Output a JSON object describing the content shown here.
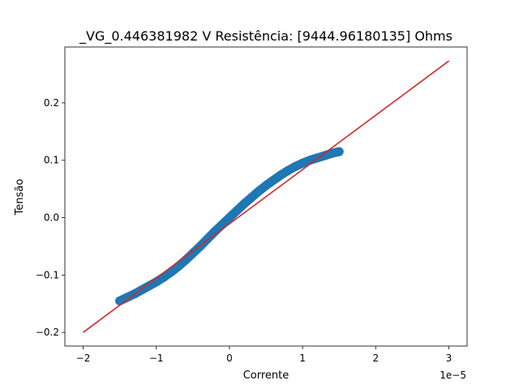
{
  "chart_data": {
    "type": "scatter",
    "title": "_VG_0.446381982 V  Resistência: [9444.96180135] Ohms",
    "xlabel": "Corrente",
    "ylabel": "Tensão",
    "x_scale_label": "1e−5",
    "x_unit_multiplier": 1e-05,
    "xlim": [
      -2.25,
      3.25
    ],
    "ylim": [
      -0.2237,
      0.2973
    ],
    "x_ticks": [
      -2,
      -1,
      0,
      1,
      2,
      3
    ],
    "x_tick_labels": [
      "−2",
      "−1",
      "0",
      "1",
      "2",
      "3"
    ],
    "y_ticks": [
      -0.2,
      -0.1,
      0.0,
      0.1,
      0.2
    ],
    "y_tick_labels": [
      "−0.2",
      "−0.1",
      "0.0",
      "0.1",
      "0.2"
    ],
    "grid": false,
    "series": [
      {
        "kind": "scatter",
        "color": "#1f77b4",
        "x": [
          -1.5,
          -1.4,
          -1.3,
          -1.2,
          -1.1,
          -1.0,
          -0.9,
          -0.8,
          -0.7,
          -0.6,
          -0.5,
          -0.4,
          -0.3,
          -0.2,
          -0.1,
          0.0,
          0.1,
          0.2,
          0.3,
          0.4,
          0.5,
          0.6,
          0.7,
          0.8,
          0.9,
          1.0,
          1.1,
          1.2,
          1.3,
          1.4,
          1.5
        ],
        "y": [
          -0.145,
          -0.139,
          -0.133,
          -0.126,
          -0.119,
          -0.112,
          -0.104,
          -0.095,
          -0.085,
          -0.074,
          -0.062,
          -0.05,
          -0.037,
          -0.024,
          -0.012,
          0.0,
          0.012,
          0.024,
          0.035,
          0.046,
          0.056,
          0.065,
          0.074,
          0.082,
          0.089,
          0.095,
          0.1,
          0.104,
          0.108,
          0.112,
          0.115
        ]
      },
      {
        "kind": "line",
        "color": "#d62728",
        "x": [
          -2.0,
          3.0
        ],
        "y": [
          -0.2,
          0.273
        ]
      }
    ]
  }
}
